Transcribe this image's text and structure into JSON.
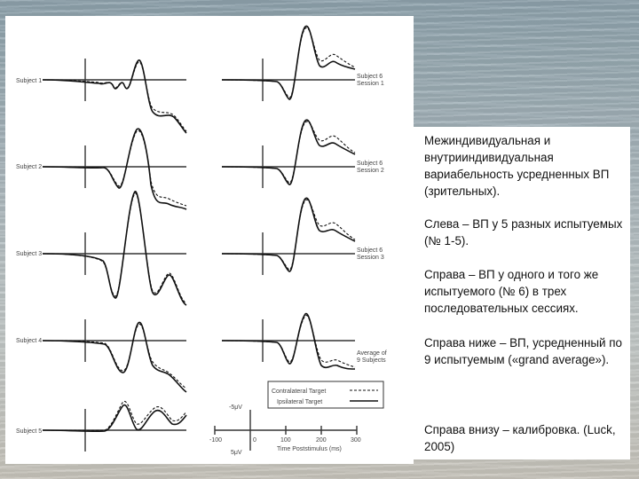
{
  "figure": {
    "left_panels": [
      {
        "label": "Subject 1"
      },
      {
        "label": "Subject 2"
      },
      {
        "label": "Subject 3"
      },
      {
        "label": "Subject 4"
      },
      {
        "label": "Subject 5"
      }
    ],
    "right_panels": [
      {
        "label_line1": "Subject 6",
        "label_line2": "Session 1"
      },
      {
        "label_line1": "Subject 6",
        "label_line2": "Session 2"
      },
      {
        "label_line1": "Subject 6",
        "label_line2": "Session 3"
      },
      {
        "label_line1": "Average of",
        "label_line2": "9 Subjects"
      }
    ],
    "legend": {
      "contralateral": "Contralateral Target",
      "ipsilateral": "Ipsilateral Target"
    },
    "calibration": {
      "top_label": "-5μV",
      "bottom_label": "5μV",
      "ticks": [
        "-100",
        "100",
        "200",
        "300"
      ],
      "zero_label": "0",
      "axis_title": "Time Poststimulus (ms)"
    }
  },
  "text": {
    "p1": "Межиндивидуальная и внутрииндивидуальная вариабельность усредненных ВП (зрительных).",
    "p2": "Слева – ВП у 5 разных испытуемых (№ 1-5).",
    "p3": "Справа – ВП у одного и того же испытуемого (№ 6) в трех последовательных сессиях.",
    "p4": "Справа ниже – ВП, усредненный по 9 испытуемым («grand average»).",
    "p5": "Справа внизу – калибровка. (Luck, 2005)"
  },
  "colors": {
    "figure_bg": "#ffffff",
    "trace": "#111111",
    "text": "#111111"
  }
}
